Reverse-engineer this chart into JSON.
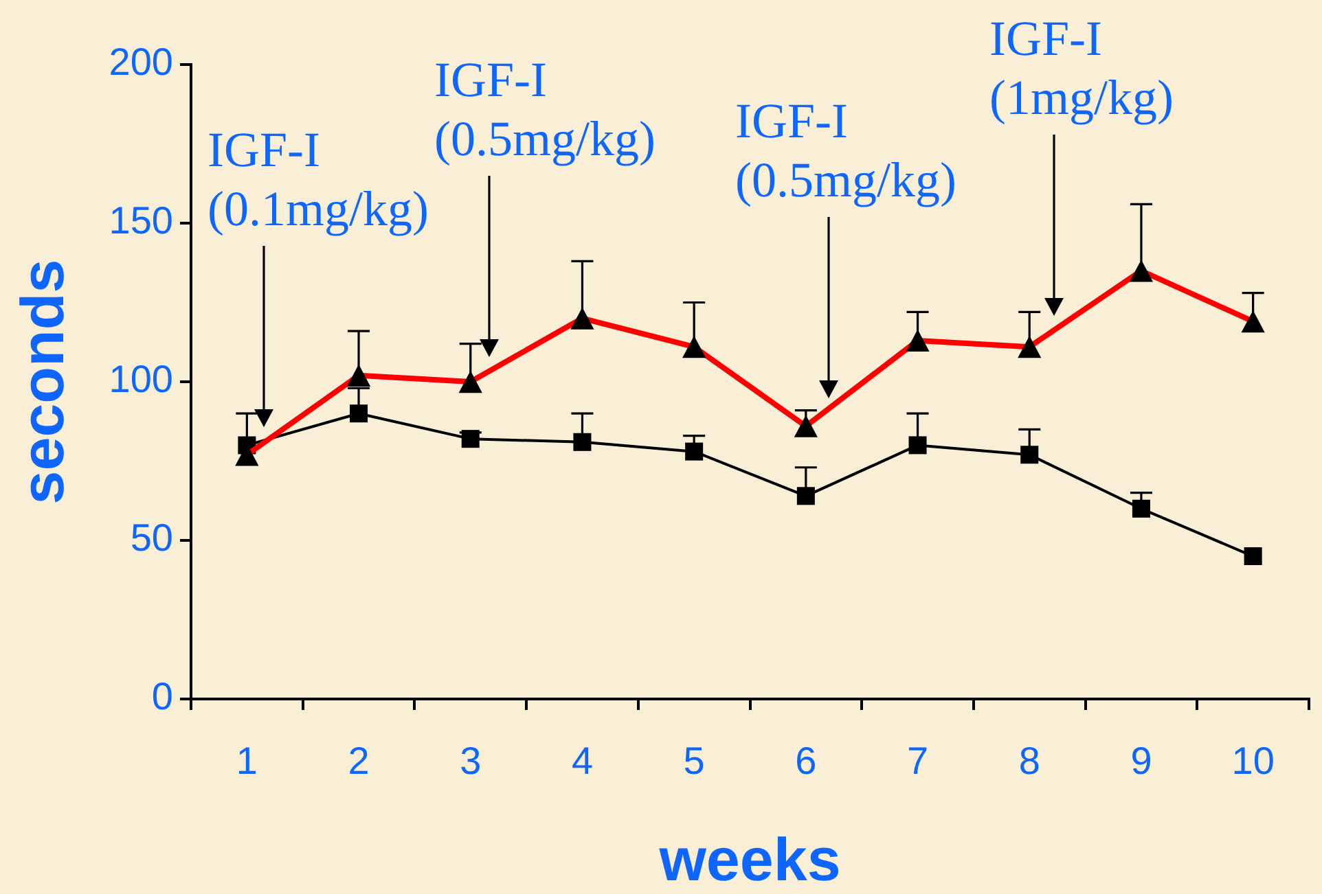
{
  "chart_data": {
    "type": "line",
    "xlabel": "weeks",
    "ylabel": "seconds",
    "categories": [
      "1",
      "2",
      "3",
      "4",
      "5",
      "6",
      "7",
      "8",
      "9",
      "10"
    ],
    "ylim": [
      0,
      200
    ],
    "yticks": [
      0,
      50,
      100,
      150,
      200
    ],
    "series": [
      {
        "color": "#000000",
        "marker": "square",
        "values": [
          80,
          90,
          82,
          81,
          78,
          64,
          80,
          77,
          60,
          45
        ],
        "errors": [
          [
            80,
            90
          ],
          [
            90,
            98
          ],
          [
            82,
            84
          ],
          [
            81,
            90
          ],
          [
            78,
            83
          ],
          [
            64,
            73
          ],
          [
            80,
            90
          ],
          [
            77,
            85
          ],
          [
            60,
            65
          ],
          null
        ]
      },
      {
        "color": "#ff0000",
        "colors": [
          "#000000",
          "#000000",
          "#000000",
          "#000000",
          "#000000",
          "#000000",
          "#000000",
          "#000000",
          "#000000",
          "#000000"
        ],
        "marker": "triangle",
        "values": [
          77,
          102,
          100,
          120,
          111,
          86,
          113,
          111,
          135,
          119
        ],
        "errors": [
          null,
          [
            102,
            116
          ],
          [
            100,
            112
          ],
          [
            120,
            138
          ],
          [
            111,
            125
          ],
          [
            86,
            91
          ],
          [
            113,
            122
          ],
          [
            111,
            122
          ],
          [
            135,
            156
          ],
          [
            119,
            128
          ]
        ]
      }
    ],
    "annotations": [
      "IGF-I (0.1mg/kg)",
      "IGF-I (0.5mg/kg)",
      "IGF-I (0.5mg/kg)",
      "IGF-I (1mg/kg)"
    ]
  }
}
